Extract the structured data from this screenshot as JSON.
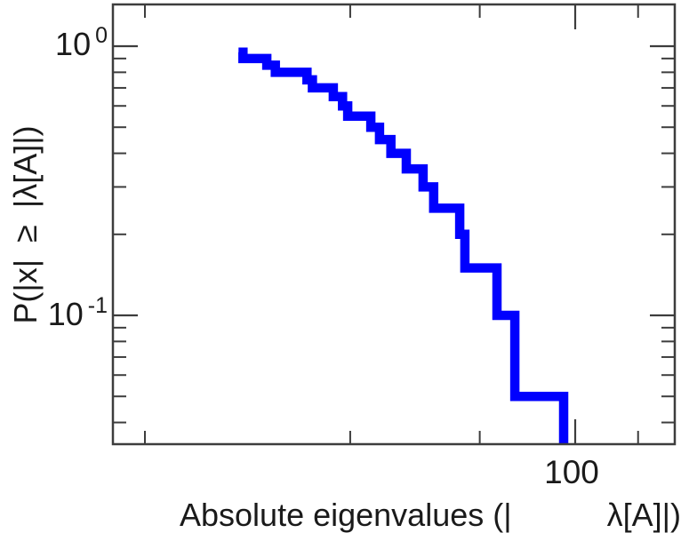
{
  "figure": {
    "background": "#ffffff",
    "frame_color": "#3d3d3d",
    "text_color": "#1a1a1a",
    "curve_color": "#0000fe",
    "curve_width": 10.5
  },
  "labels": {
    "ylabel": "P(|x| ≥ |λ[A]|)",
    "xlabel_part1": "Absolute eigenvalues (|",
    "xlabel_part2": "λ[A]|)",
    "x_tick_label": "100",
    "y_tick_top_base": "10",
    "y_tick_top_exp": "0",
    "y_tick_bottom_base": "10",
    "y_tick_bottom_exp": "-1"
  },
  "chart_data": {
    "type": "line",
    "subtype": "step-post-ccdf",
    "title": "",
    "xlabel": "Absolute eigenvalues (|λ[A]|)",
    "ylabel": "P(|x| ≥ |λ[A]|)",
    "x_scale": "log",
    "y_scale": "log",
    "x_range_approx": [
      8.4,
      170
    ],
    "y_range_approx": [
      0.034,
      1.43
    ],
    "x_major_ticks": [
      100
    ],
    "x_minor_ticks": [
      10,
      30,
      60,
      140
    ],
    "y_major_ticks": [
      1,
      0.1
    ],
    "y_minor_ticks": [
      0.9,
      0.8,
      0.7,
      0.6,
      0.5,
      0.4,
      0.3,
      0.2,
      0.09,
      0.08,
      0.07,
      0.06,
      0.05,
      0.04
    ],
    "grid": false,
    "legend": "none",
    "n_points": 20,
    "points": [
      {
        "x": 16.5,
        "p": 0.95
      },
      {
        "x": 16.9,
        "p": 0.9
      },
      {
        "x": 19.2,
        "p": 0.85
      },
      {
        "x": 20.1,
        "p": 0.8
      },
      {
        "x": 23.8,
        "p": 0.75
      },
      {
        "x": 24.5,
        "p": 0.7
      },
      {
        "x": 27.4,
        "p": 0.65
      },
      {
        "x": 28.8,
        "p": 0.6
      },
      {
        "x": 29.6,
        "p": 0.55
      },
      {
        "x": 33.5,
        "p": 0.5
      },
      {
        "x": 35.1,
        "p": 0.45
      },
      {
        "x": 37.3,
        "p": 0.4
      },
      {
        "x": 40.5,
        "p": 0.35
      },
      {
        "x": 44.3,
        "p": 0.3
      },
      {
        "x": 46.9,
        "p": 0.25
      },
      {
        "x": 53.9,
        "p": 0.2
      },
      {
        "x": 55.4,
        "p": 0.15
      },
      {
        "x": 65.8,
        "p": 0.1
      },
      {
        "x": 72.4,
        "p": 0.05
      },
      {
        "x": 94.0,
        "p": 0.0
      }
    ]
  }
}
